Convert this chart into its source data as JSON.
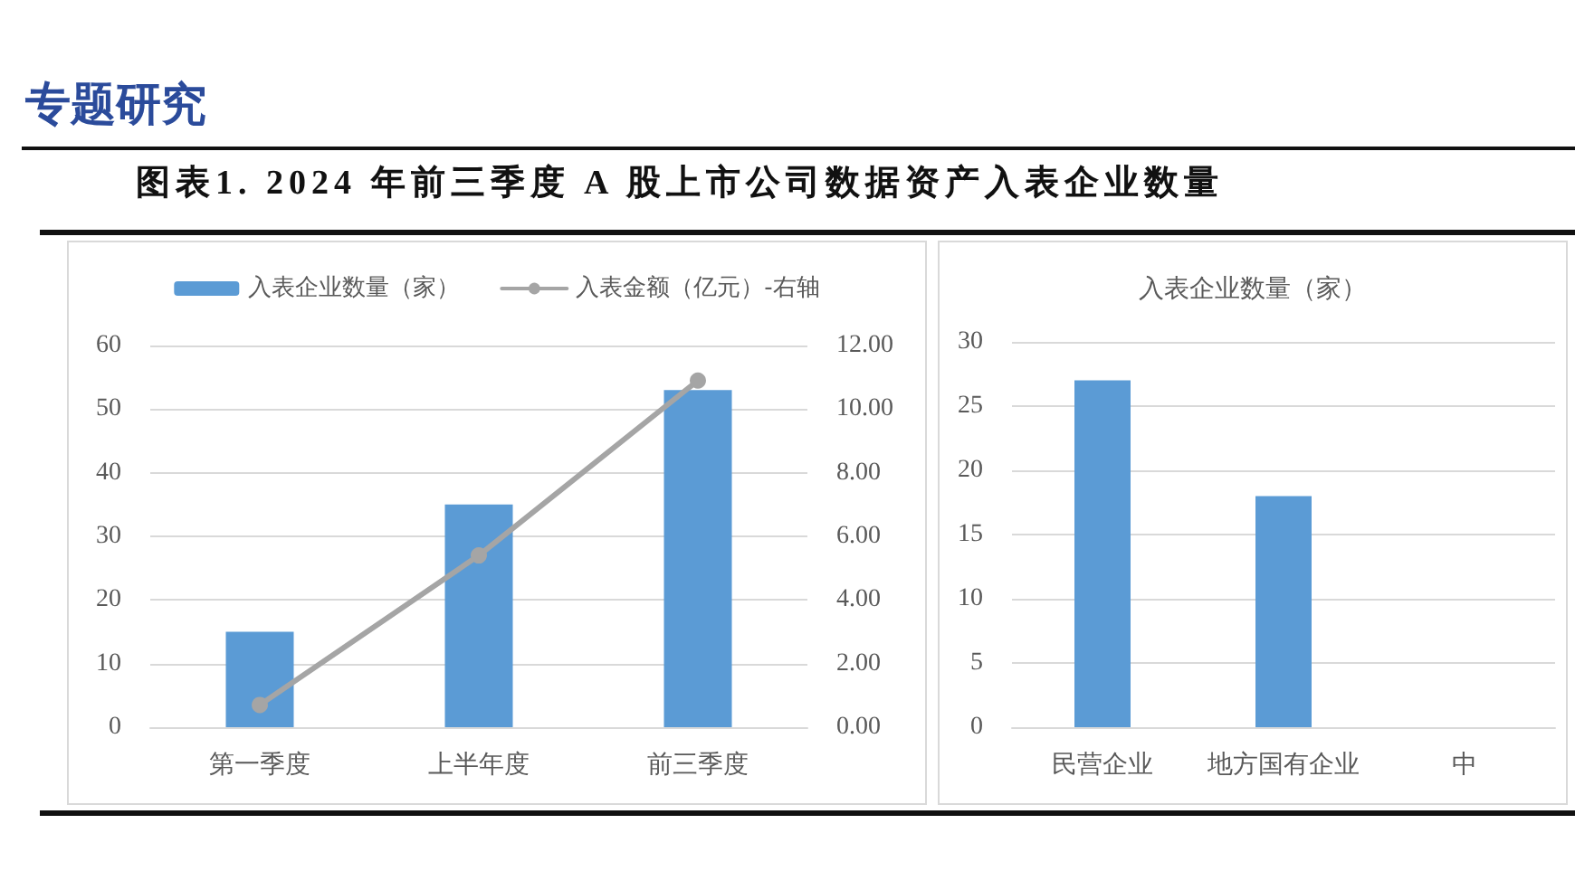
{
  "chart_data": [
    {
      "type": "bar",
      "title": "图表1. 2024 年前三季度 A 股上市公司数据资产入表企业数量",
      "annotations": [
        "专题研究"
      ],
      "categories": [
        "第一季度",
        "上半年度",
        "前三季度"
      ],
      "series": [
        {
          "name": "入表企业数量（家）",
          "type": "bar",
          "color": "#5b9bd5",
          "values": [
            15,
            35,
            53
          ]
        },
        {
          "name": "入表金额（亿元）-右轴",
          "type": "line",
          "axis": "y2",
          "color": "#a5a5a5",
          "values": [
            0.7,
            5.4,
            10.9
          ]
        }
      ],
      "ylim": [
        0,
        60
      ],
      "yticks": [
        0,
        10,
        20,
        30,
        40,
        50,
        60
      ],
      "y2lim": [
        0,
        12
      ],
      "y2ticks": [
        {
          "value": 0,
          "label": "0.00"
        },
        {
          "value": 2,
          "label": "2.00"
        },
        {
          "value": 4,
          "label": "4.00"
        },
        {
          "value": 6,
          "label": "6.00"
        },
        {
          "value": 8,
          "label": "8.00"
        },
        {
          "value": 10,
          "label": "10.00"
        },
        {
          "value": 12,
          "label": "12.00"
        }
      ],
      "grid": "y",
      "legend": "top",
      "marker": "circle"
    },
    {
      "type": "bar",
      "title": "入表企业数量（家）",
      "categories": [
        "民营企业",
        "地方国有企业",
        "中"
      ],
      "values": [
        27,
        18,
        null
      ],
      "color": "#5b9bd5",
      "ylim": [
        0,
        30
      ],
      "yticks": [
        0,
        5,
        10,
        15,
        20,
        25,
        30
      ],
      "grid": "y"
    }
  ]
}
